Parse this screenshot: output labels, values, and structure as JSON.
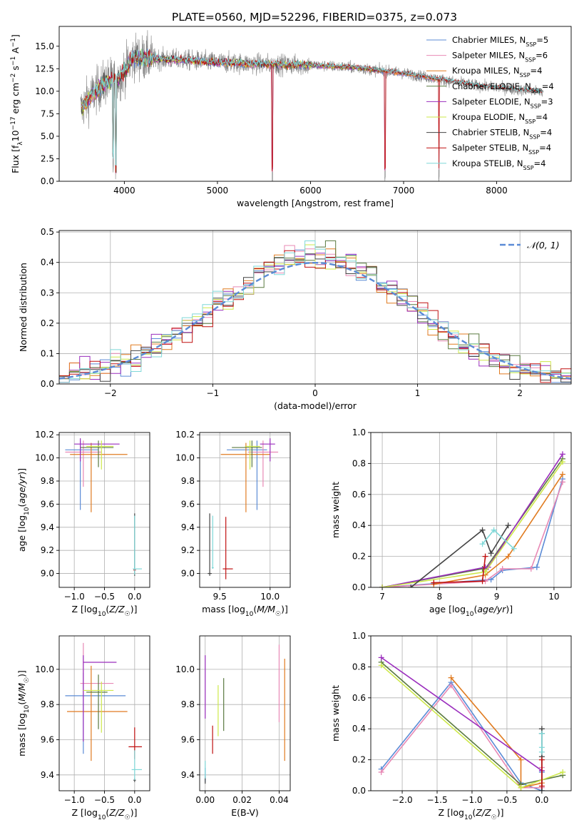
{
  "figure_title": "PLATE=0560, MJD=52296, FIBERID=0375, z=0.073",
  "colors": {
    "chabrier_miles": "#5b8bd6",
    "salpeter_miles": "#e889b5",
    "kroupa_miles": "#e07b20",
    "chabrier_elodie": "#5a7a40",
    "salpeter_elodie": "#9a2dbd",
    "kroupa_elodie": "#cde84a",
    "chabrier_stelib": "#444444",
    "salpeter_stelib": "#c01010",
    "kroupa_stelib": "#7fd8d8",
    "data": "#808080",
    "normal": "#5b8bd6",
    "grid": "#b0b0b0"
  },
  "chart_data": [
    {
      "type": "line",
      "id": "spectrum",
      "xlabel": "wavelength [Angstrom, rest frame]",
      "ylabel": "Flux [fλ10⁻¹⁷ erg cm⁻² s⁻¹ A⁻¹]",
      "xlim": [
        3300,
        8800
      ],
      "ylim": [
        0,
        17.2
      ],
      "xticks": [
        4000,
        5000,
        6000,
        7000,
        8000
      ],
      "yticks": [
        0.0,
        2.5,
        5.0,
        7.5,
        10.0,
        12.5,
        15.0
      ],
      "legend": [
        "Chabrier MILES, N_SSP=5",
        "Salpeter MILES, N_SSP=6",
        "Kroupa MILES, N_SSP=4",
        "Chabrier ELODIE, N_SSP=4",
        "Salpeter ELODIE, N_SSP=3",
        "Kroupa ELODIE, N_SSP=4",
        "Chabrier STELIB, N_SSP=4",
        "Salpeter STELIB, N_SSP=4",
        "Kroupa STELIB, N_SSP=4"
      ],
      "legend_placement": "upper right",
      "continuum": {
        "x": [
          3530,
          3650,
          3800,
          3950,
          4100,
          4300,
          4600,
          5000,
          5500,
          6000,
          6500,
          7000,
          7400,
          7800,
          8200,
          8500
        ],
        "y": [
          8.0,
          9.6,
          11.0,
          11.5,
          13.8,
          13.6,
          13.5,
          13.2,
          13.0,
          12.9,
          12.6,
          12.0,
          11.3,
          10.6,
          10.2,
          9.9
        ]
      },
      "model_xmax": {
        "miles": 7400,
        "elodie": 6800,
        "stelib": 8500
      },
      "absorption_lines": [
        {
          "x": 3880,
          "depth": 9.0
        },
        {
          "x": 3910,
          "depth": 11.0
        },
        {
          "x": 5590,
          "depth": 13.0
        },
        {
          "x": 6800,
          "depth": 12.0
        },
        {
          "x": 7380,
          "depth": 11.0
        }
      ],
      "grid": false
    },
    {
      "type": "step",
      "id": "residuals",
      "xlabel": "(data-model)/error",
      "ylabel": "Normed distribution",
      "xlim": [
        -2.5,
        2.5
      ],
      "ylim": [
        0,
        0.505
      ],
      "xticks": [
        -2,
        -1,
        0,
        1,
        2
      ],
      "yticks": [
        0.0,
        0.1,
        0.2,
        0.3,
        0.4,
        0.5
      ],
      "legend": [
        "𝒩(0, 1)"
      ],
      "legend_placement": "upper right",
      "bin_edges_range": [
        -2.5,
        2.5
      ],
      "bins": 50,
      "grid": true
    },
    {
      "type": "errorbar",
      "id": "age_vs_Z",
      "xlabel": "Z [log10(Z/Z☉)]",
      "ylabel": "age [log10(age/yr)]",
      "xlim": [
        -1.25,
        0.25
      ],
      "ylim": [
        8.88,
        10.22
      ],
      "xticks": [
        -1.0,
        -0.5,
        0.0
      ],
      "yticks": [
        9.0,
        9.2,
        9.4,
        9.6,
        9.8,
        10.0,
        10.2
      ],
      "points": [
        {
          "model": "chabrier_miles",
          "x": -0.9,
          "xerr": [
            0.25,
            0.3
          ],
          "y": 10.07,
          "yerr": [
            0.52,
            0.08
          ]
        },
        {
          "model": "salpeter_miles",
          "x": -0.85,
          "xerr": [
            0.3,
            0.3
          ],
          "y": 10.05,
          "yerr": [
            0.3,
            0.1
          ]
        },
        {
          "model": "kroupa_miles",
          "x": -0.72,
          "xerr": [
            0.35,
            0.6
          ],
          "y": 10.03,
          "yerr": [
            0.5,
            0.1
          ]
        },
        {
          "model": "chabrier_elodie",
          "x": -0.6,
          "xerr": [
            0.3,
            0.25
          ],
          "y": 10.09,
          "yerr": [
            0.17,
            0.06
          ]
        },
        {
          "model": "salpeter_elodie",
          "x": -0.9,
          "xerr": [
            0.1,
            0.65
          ],
          "y": 10.12,
          "yerr": [
            0.15,
            0.05
          ]
        },
        {
          "model": "kroupa_elodie",
          "x": -0.55,
          "xerr": [
            0.25,
            0.2
          ],
          "y": 10.1,
          "yerr": [
            0.2,
            0.05
          ]
        },
        {
          "model": "chabrier_stelib",
          "x": 0.0,
          "xerr": [
            0.0,
            0.0
          ],
          "y": 9.0,
          "yerr": [
            0.02,
            0.52
          ]
        },
        {
          "model": "salpeter_stelib",
          "x": 0.0,
          "xerr": [
            0.02,
            0.02
          ],
          "y": 9.03,
          "yerr": [
            0.01,
            0.01
          ]
        },
        {
          "model": "kroupa_stelib",
          "x": 0.0,
          "xerr": [
            0.03,
            0.12
          ],
          "y": 9.04,
          "yerr": [
            0.05,
            0.46
          ]
        }
      ],
      "grid": true
    },
    {
      "type": "errorbar",
      "id": "age_vs_mass",
      "xlabel": "mass [log10(M/M☉)]",
      "ylabel": "",
      "xlim": [
        9.3,
        10.2
      ],
      "ylim": [
        8.88,
        10.22
      ],
      "xticks": [
        9.5,
        10.0
      ],
      "yticks": [
        9.0,
        9.2,
        9.4,
        9.6,
        9.8,
        10.0,
        10.2
      ],
      "points": [
        {
          "model": "chabrier_miles",
          "x": 9.87,
          "xerr": [
            0.3,
            0.1
          ],
          "y": 10.07,
          "yerr": [
            0.52,
            0.08
          ]
        },
        {
          "model": "salpeter_miles",
          "x": 9.93,
          "xerr": [
            0.15,
            0.15
          ],
          "y": 10.05,
          "yerr": [
            0.3,
            0.1
          ]
        },
        {
          "model": "kroupa_miles",
          "x": 9.76,
          "xerr": [
            0.25,
            0.24
          ],
          "y": 10.03,
          "yerr": [
            0.5,
            0.1
          ]
        },
        {
          "model": "chabrier_elodie",
          "x": 9.82,
          "xerr": [
            0.2,
            0.1
          ],
          "y": 10.09,
          "yerr": [
            0.17,
            0.06
          ]
        },
        {
          "model": "salpeter_elodie",
          "x": 10.0,
          "xerr": [
            0.1,
            0.05
          ],
          "y": 10.12,
          "yerr": [
            0.15,
            0.05
          ]
        },
        {
          "model": "kroupa_elodie",
          "x": 9.8,
          "xerr": [
            0.05,
            0.1
          ],
          "y": 10.1,
          "yerr": [
            0.2,
            0.05
          ]
        },
        {
          "model": "chabrier_stelib",
          "x": 9.4,
          "xerr": [
            0.02,
            0.02
          ],
          "y": 9.0,
          "yerr": [
            0.02,
            0.52
          ]
        },
        {
          "model": "salpeter_stelib",
          "x": 9.56,
          "xerr": [
            0.03,
            0.07
          ],
          "y": 9.04,
          "yerr": [
            0.09,
            0.45
          ]
        },
        {
          "model": "kroupa_stelib",
          "x": 9.43,
          "xerr": [
            0.01,
            0.01
          ],
          "y": 9.05,
          "yerr": [
            0.01,
            0.45
          ]
        }
      ],
      "grid": true
    },
    {
      "type": "line",
      "id": "weight_vs_age",
      "xlabel": "age [log10(age/yr)]",
      "ylabel": "mass weight",
      "xlim": [
        6.8,
        10.3
      ],
      "ylim": [
        0,
        1
      ],
      "xticks": [
        7,
        8,
        9,
        10
      ],
      "yticks": [
        0.0,
        0.2,
        0.4,
        0.6,
        0.8,
        1.0
      ],
      "series": [
        {
          "model": "chabrier_miles",
          "x": [
            7.0,
            8.9,
            9.1,
            9.7,
            10.15
          ],
          "y": [
            0.0,
            0.05,
            0.11,
            0.13,
            0.7
          ]
        },
        {
          "model": "salpeter_miles",
          "x": [
            7.0,
            8.8,
            9.1,
            9.6,
            10.15
          ],
          "y": [
            0.0,
            0.04,
            0.12,
            0.12,
            0.68
          ]
        },
        {
          "model": "kroupa_miles",
          "x": [
            7.9,
            8.8,
            9.2,
            10.15
          ],
          "y": [
            0.02,
            0.08,
            0.2,
            0.73
          ]
        },
        {
          "model": "chabrier_elodie",
          "x": [
            7.0,
            8.75,
            8.8,
            10.15
          ],
          "y": [
            0.0,
            0.12,
            0.12,
            0.83
          ]
        },
        {
          "model": "salpeter_elodie",
          "x": [
            7.0,
            8.8,
            8.85,
            10.15
          ],
          "y": [
            0.0,
            0.13,
            0.13,
            0.86
          ]
        },
        {
          "model": "kroupa_elodie",
          "x": [
            7.0,
            8.8,
            10.15
          ],
          "y": [
            0.0,
            0.1,
            0.81
          ]
        },
        {
          "model": "chabrier_stelib",
          "x": [
            7.5,
            8.75,
            8.9,
            9.2
          ],
          "y": [
            0.0,
            0.37,
            0.22,
            0.4
          ]
        },
        {
          "model": "salpeter_stelib",
          "x": [
            7.9,
            8.75,
            8.8
          ],
          "y": [
            0.03,
            0.04,
            0.2
          ]
        },
        {
          "model": "kroupa_stelib",
          "x": [
            8.75,
            8.95,
            9.3
          ],
          "y": [
            0.28,
            0.37,
            0.25
          ]
        }
      ],
      "grid": true
    },
    {
      "type": "errorbar",
      "id": "mass_vs_Z",
      "xlabel": "Z [log10(Z/Z☉)]",
      "ylabel": "mass [log10(M/M☉)]",
      "xlim": [
        -1.25,
        0.25
      ],
      "ylim": [
        9.31,
        10.19
      ],
      "xticks": [
        -1.0,
        -0.5,
        0.0
      ],
      "yticks": [
        9.4,
        9.6,
        9.8,
        10.0
      ],
      "points": [
        {
          "model": "chabrier_miles",
          "x": -0.85,
          "xerr": [
            0.3,
            0.7
          ],
          "y": 9.85,
          "yerr": [
            0.33,
            0.13
          ]
        },
        {
          "model": "salpeter_miles",
          "x": -0.85,
          "xerr": [
            0.05,
            0.5
          ],
          "y": 9.92,
          "yerr": [
            0.08,
            0.23
          ]
        },
        {
          "model": "kroupa_miles",
          "x": -0.72,
          "xerr": [
            0.4,
            0.6
          ],
          "y": 9.76,
          "yerr": [
            0.28,
            0.26
          ]
        },
        {
          "model": "chabrier_elodie",
          "x": -0.6,
          "xerr": [
            0.2,
            0.15
          ],
          "y": 9.87,
          "yerr": [
            0.21,
            0.1
          ]
        },
        {
          "model": "salpeter_elodie",
          "x": -0.85,
          "xerr": [
            0.0,
            0.55
          ],
          "y": 10.04,
          "yerr": [
            0.45,
            0.04
          ]
        },
        {
          "model": "kroupa_elodie",
          "x": -0.55,
          "xerr": [
            0.3,
            0.2
          ],
          "y": 9.88,
          "yerr": [
            0.24,
            0.05
          ]
        },
        {
          "model": "chabrier_stelib",
          "x": 0.0,
          "xerr": [
            0.02,
            0.02
          ],
          "y": 9.37,
          "yerr": [
            0.01,
            0.01
          ]
        },
        {
          "model": "salpeter_stelib",
          "x": 0.0,
          "xerr": [
            0.1,
            0.12
          ],
          "y": 9.56,
          "yerr": [
            0.07,
            0.11
          ]
        },
        {
          "model": "kroupa_stelib",
          "x": 0.0,
          "xerr": [
            0.05,
            0.12
          ],
          "y": 9.43,
          "yerr": [
            0.06,
            0.11
          ]
        }
      ],
      "grid": true
    },
    {
      "type": "errorbar",
      "id": "mass_vs_EBV",
      "xlabel": "E(B-V)",
      "ylabel": "",
      "xlim": [
        -0.003,
        0.046
      ],
      "ylim": [
        9.31,
        10.19
      ],
      "xticks": [
        0.0,
        0.02,
        0.04
      ],
      "yticks": [
        9.4,
        9.6,
        9.8,
        10.0
      ],
      "points": [
        {
          "model": "chabrier_miles",
          "x": 0.0,
          "xerr": [
            0,
            0
          ],
          "y": 9.4,
          "yerr": [
            0.04,
            0.04
          ]
        },
        {
          "model": "salpeter_miles",
          "x": 0.04,
          "xerr": [
            0,
            0
          ],
          "y": 9.9,
          "yerr": [
            0.2,
            0.24
          ]
        },
        {
          "model": "kroupa_miles",
          "x": 0.043,
          "xerr": [
            0,
            0
          ],
          "y": 9.76,
          "yerr": [
            0.28,
            0.3
          ]
        },
        {
          "model": "chabrier_elodie",
          "x": 0.01,
          "xerr": [
            0,
            0
          ],
          "y": 9.8,
          "yerr": [
            0.15,
            0.15
          ]
        },
        {
          "model": "salpeter_elodie",
          "x": 0.0,
          "xerr": [
            0,
            0
          ],
          "y": 9.9,
          "yerr": [
            0.18,
            0.18
          ]
        },
        {
          "model": "kroupa_elodie",
          "x": 0.007,
          "xerr": [
            0,
            0
          ],
          "y": 9.76,
          "yerr": [
            0.14,
            0.15
          ]
        },
        {
          "model": "chabrier_stelib",
          "x": 0.0,
          "xerr": [
            0,
            0
          ],
          "y": 9.37,
          "yerr": [
            0.02,
            0.02
          ]
        },
        {
          "model": "salpeter_stelib",
          "x": 0.004,
          "xerr": [
            0,
            0
          ],
          "y": 9.6,
          "yerr": [
            0.08,
            0.08
          ]
        },
        {
          "model": "kroupa_stelib",
          "x": 0.0,
          "xerr": [
            0,
            0
          ],
          "y": 9.43,
          "yerr": [
            0.05,
            0.05
          ]
        }
      ],
      "grid": true
    },
    {
      "type": "line",
      "id": "weight_vs_Z",
      "xlabel": "Z [log10(Z/Z☉)]",
      "ylabel": "mass weight",
      "xlim": [
        -2.45,
        0.42
      ],
      "ylim": [
        0,
        1
      ],
      "xticks": [
        -2.0,
        -1.5,
        -1.0,
        -0.5,
        0.0
      ],
      "yticks": [
        0.0,
        0.2,
        0.4,
        0.6,
        0.8,
        1.0
      ],
      "series": [
        {
          "model": "chabrier_miles",
          "x": [
            -2.3,
            -1.3,
            -0.3,
            0.0,
            0.0
          ],
          "y": [
            0.14,
            0.7,
            0.05,
            0.0,
            0.12
          ]
        },
        {
          "model": "salpeter_miles",
          "x": [
            -2.3,
            -1.3,
            -0.3,
            0.0,
            0.0
          ],
          "y": [
            0.12,
            0.68,
            0.02,
            0.02,
            0.15
          ]
        },
        {
          "model": "kroupa_miles",
          "x": [
            -1.3,
            -0.3,
            -0.3,
            0.0
          ],
          "y": [
            0.73,
            0.2,
            0.02,
            0.05
          ]
        },
        {
          "model": "chabrier_elodie",
          "x": [
            -2.3,
            -0.3,
            0.3
          ],
          "y": [
            0.83,
            0.04,
            0.1
          ]
        },
        {
          "model": "salpeter_elodie",
          "x": [
            -2.3,
            0.0
          ],
          "y": [
            0.86,
            0.13
          ]
        },
        {
          "model": "kroupa_elodie",
          "x": [
            -2.3,
            -0.3,
            0.3
          ],
          "y": [
            0.81,
            0.02,
            0.12
          ]
        },
        {
          "model": "chabrier_stelib",
          "x": [
            0.0,
            0.0,
            0.0,
            0.0
          ],
          "y": [
            0.0,
            0.22,
            0.37,
            0.4
          ]
        },
        {
          "model": "salpeter_stelib",
          "x": [
            0.0,
            0.0
          ],
          "y": [
            0.03,
            0.2
          ]
        },
        {
          "model": "kroupa_stelib",
          "x": [
            0.0,
            0.0,
            0.0
          ],
          "y": [
            0.25,
            0.28,
            0.37
          ]
        }
      ],
      "grid": true
    }
  ]
}
